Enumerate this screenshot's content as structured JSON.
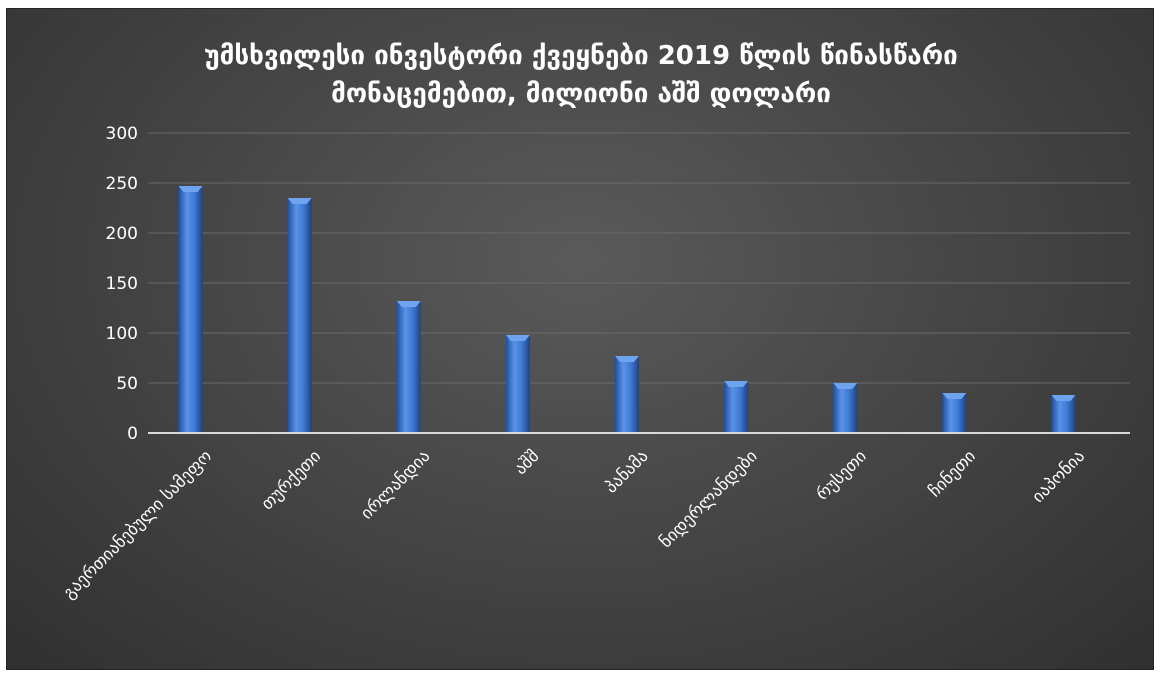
{
  "chart_data": {
    "type": "bar",
    "title_lines": [
      "უმსხვილესი ინვესტორი ქვეყნები 2019 წლის წინასწარი",
      "მონაცემებით, მილიონი აშშ დოლარი"
    ],
    "categories": [
      "გაერთიანებული სამეფო",
      "თურქეთი",
      "ირლანდია",
      "აშშ",
      "პანამა",
      "ნიდერლანდები",
      "რუსეთი",
      "ჩინეთი",
      "იაპონია"
    ],
    "values": [
      247,
      235,
      132,
      98,
      77,
      52,
      50,
      40,
      38
    ],
    "y_ticks": [
      "0",
      "50",
      "100",
      "150",
      "200",
      "250",
      "300"
    ],
    "ylim": [
      0,
      300
    ],
    "xlabel": "",
    "ylabel": "",
    "grid": true,
    "legend": "none",
    "colors": {
      "bar": "#3f7bd6",
      "bar_dark": "#1f4f9c",
      "bar_light": "#6fa3ee",
      "text": "#ffffff",
      "grid": "#6a6a6a",
      "axis": "#d9d9d9"
    }
  }
}
